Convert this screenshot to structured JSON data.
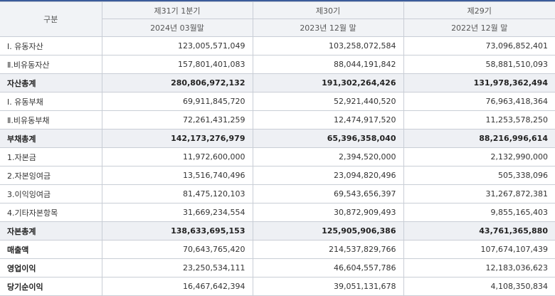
{
  "header": {
    "category": "구분",
    "periods": [
      {
        "label": "제31기 1분기",
        "date": "2024년 03월말"
      },
      {
        "label": "제30기",
        "date": "2023년 12월 말"
      },
      {
        "label": "제29기",
        "date": "2022년 12월 말"
      }
    ]
  },
  "rows": [
    {
      "label": "Ⅰ. 유동자산",
      "values": [
        "123,005,571,049",
        "103,258,072,584",
        "73,096,852,401"
      ],
      "style": "normal"
    },
    {
      "label": "Ⅱ.비유동자산",
      "values": [
        "157,801,401,083",
        "88,044,191,842",
        "58,881,510,093"
      ],
      "style": "normal"
    },
    {
      "label": "자산총계",
      "values": [
        "280,806,972,132",
        "191,302,264,426",
        "131,978,362,494"
      ],
      "style": "total"
    },
    {
      "label": "Ⅰ. 유동부채",
      "values": [
        "69,911,845,720",
        "52,921,440,520",
        "76,963,418,364"
      ],
      "style": "normal"
    },
    {
      "label": "Ⅱ.비유동부채",
      "values": [
        "72,261,431,259",
        "12,474,917,520",
        "11,253,578,250"
      ],
      "style": "normal"
    },
    {
      "label": "부채총계",
      "values": [
        "142,173,276,979",
        "65,396,358,040",
        "88,216,996,614"
      ],
      "style": "total"
    },
    {
      "label": "1.자본금",
      "values": [
        "11,972,600,000",
        "2,394,520,000",
        "2,132,990,000"
      ],
      "style": "normal"
    },
    {
      "label": "2.자본잉여금",
      "values": [
        "13,516,740,496",
        "23,094,820,496",
        "505,338,096"
      ],
      "style": "normal"
    },
    {
      "label": "3.이익잉여금",
      "values": [
        "81,475,120,103",
        "69,543,656,397",
        "31,267,872,381"
      ],
      "style": "normal"
    },
    {
      "label": "4.기타자본항목",
      "values": [
        "31,669,234,554",
        "30,872,909,493",
        "9,855,165,403"
      ],
      "style": "normal"
    },
    {
      "label": "자본총계",
      "values": [
        "138,633,695,153",
        "125,905,906,386",
        "43,761,365,880"
      ],
      "style": "total"
    },
    {
      "label": "매출액",
      "values": [
        "70,643,765,420",
        "214,537,829,766",
        "107,674,107,439"
      ],
      "style": "bold-label"
    },
    {
      "label": "영업이익",
      "values": [
        "23,250,534,111",
        "46,604,557,786",
        "12,183,036,623"
      ],
      "style": "bold-label"
    },
    {
      "label": "당기순이익",
      "values": [
        "16,467,642,394",
        "39,051,131,678",
        "4,108,350,834"
      ],
      "style": "bold-label"
    }
  ]
}
